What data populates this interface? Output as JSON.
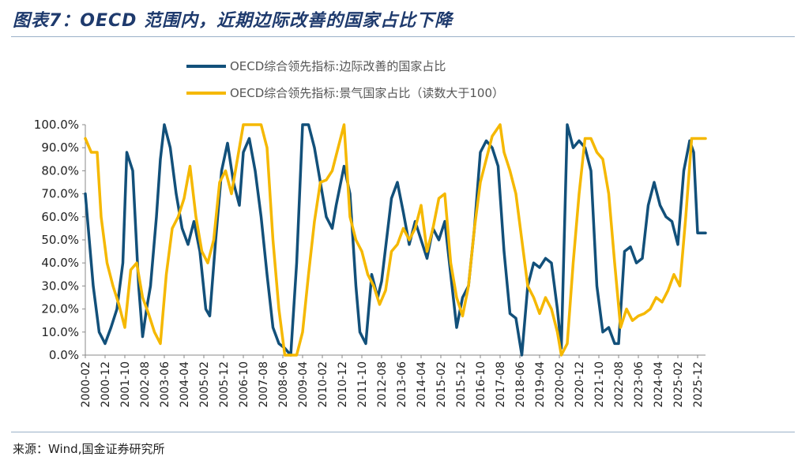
{
  "header": {
    "title": "图表7：OECD 范围内，近期边际改善的国家占比下降"
  },
  "footer": {
    "source": "来源：Wind,国金证券研究所"
  },
  "colors": {
    "series1": "#12507a",
    "series2": "#f5b800",
    "axis": "#888888",
    "rule": "#9ab0c8"
  },
  "chart_data": {
    "type": "line",
    "title": "",
    "xlabel": "",
    "ylabel": "",
    "ylim": [
      0,
      100
    ],
    "y_ticks": [
      "0.0%",
      "10.0%",
      "20.0%",
      "30.0%",
      "40.0%",
      "50.0%",
      "60.0%",
      "70.0%",
      "80.0%",
      "90.0%",
      "100.0%"
    ],
    "x_ticks": [
      "2000-02",
      "2000-12",
      "2001-10",
      "2002-08",
      "2003-06",
      "2004-04",
      "2005-02",
      "2005-12",
      "2006-10",
      "2007-08",
      "2008-06",
      "2009-04",
      "2010-02",
      "2010-12",
      "2011-10",
      "2012-08",
      "2013-06",
      "2014-04",
      "2015-02",
      "2015-12",
      "2016-10",
      "2017-08",
      "2018-06",
      "2019-04",
      "2020-02",
      "2020-12",
      "2021-10",
      "2022-08",
      "2023-06",
      "2024-04",
      "2025-02",
      "2025-12"
    ],
    "legend_position": "top-center",
    "grid": false,
    "series": [
      {
        "name": "OECD综合领先指标:边际改善的国家占比",
        "color": "#12507a",
        "points": [
          [
            "2000-02",
            70
          ],
          [
            "2000-06",
            30
          ],
          [
            "2000-09",
            10
          ],
          [
            "2000-12",
            5
          ],
          [
            "2001-03",
            12
          ],
          [
            "2001-06",
            20
          ],
          [
            "2001-09",
            40
          ],
          [
            "2001-11",
            88
          ],
          [
            "2002-02",
            80
          ],
          [
            "2002-05",
            30
          ],
          [
            "2002-07",
            8
          ],
          [
            "2002-09",
            20
          ],
          [
            "2002-11",
            30
          ],
          [
            "2003-02",
            60
          ],
          [
            "2003-04",
            85
          ],
          [
            "2003-06",
            100
          ],
          [
            "2003-09",
            90
          ],
          [
            "2003-12",
            70
          ],
          [
            "2004-03",
            55
          ],
          [
            "2004-06",
            48
          ],
          [
            "2004-09",
            58
          ],
          [
            "2004-12",
            45
          ],
          [
            "2005-03",
            20
          ],
          [
            "2005-05",
            17
          ],
          [
            "2005-08",
            50
          ],
          [
            "2005-11",
            80
          ],
          [
            "2006-02",
            92
          ],
          [
            "2006-05",
            75
          ],
          [
            "2006-08",
            65
          ],
          [
            "2006-10",
            88
          ],
          [
            "2007-01",
            94
          ],
          [
            "2007-04",
            80
          ],
          [
            "2007-07",
            60
          ],
          [
            "2007-10",
            35
          ],
          [
            "2008-01",
            12
          ],
          [
            "2008-04",
            5
          ],
          [
            "2008-07",
            3
          ],
          [
            "2008-10",
            0
          ],
          [
            "2009-01",
            40
          ],
          [
            "2009-04",
            100
          ],
          [
            "2009-07",
            100
          ],
          [
            "2009-10",
            90
          ],
          [
            "2010-01",
            75
          ],
          [
            "2010-04",
            60
          ],
          [
            "2010-07",
            55
          ],
          [
            "2010-09",
            65
          ],
          [
            "2011-01",
            82
          ],
          [
            "2011-04",
            70
          ],
          [
            "2011-07",
            30
          ],
          [
            "2011-09",
            10
          ],
          [
            "2011-12",
            5
          ],
          [
            "2012-03",
            35
          ],
          [
            "2012-06",
            25
          ],
          [
            "2012-08",
            32
          ],
          [
            "2013-01",
            68
          ],
          [
            "2013-04",
            75
          ],
          [
            "2013-07",
            62
          ],
          [
            "2013-10",
            48
          ],
          [
            "2014-01",
            58
          ],
          [
            "2014-04",
            50
          ],
          [
            "2014-07",
            42
          ],
          [
            "2014-10",
            55
          ],
          [
            "2015-01",
            50
          ],
          [
            "2015-04",
            58
          ],
          [
            "2015-07",
            35
          ],
          [
            "2015-10",
            12
          ],
          [
            "2016-01",
            25
          ],
          [
            "2016-04",
            30
          ],
          [
            "2016-07",
            55
          ],
          [
            "2016-10",
            88
          ],
          [
            "2017-01",
            93
          ],
          [
            "2017-04",
            90
          ],
          [
            "2017-07",
            82
          ],
          [
            "2017-10",
            45
          ],
          [
            "2018-01",
            18
          ],
          [
            "2018-04",
            16
          ],
          [
            "2018-07",
            0
          ],
          [
            "2018-10",
            30
          ],
          [
            "2019-01",
            40
          ],
          [
            "2019-04",
            38
          ],
          [
            "2019-07",
            42
          ],
          [
            "2019-10",
            40
          ],
          [
            "2020-01",
            20
          ],
          [
            "2020-03",
            3
          ],
          [
            "2020-06",
            100
          ],
          [
            "2020-09",
            90
          ],
          [
            "2020-12",
            93
          ],
          [
            "2021-03",
            90
          ],
          [
            "2021-06",
            80
          ],
          [
            "2021-09",
            30
          ],
          [
            "2021-12",
            10
          ],
          [
            "2022-03",
            12
          ],
          [
            "2022-06",
            5
          ],
          [
            "2022-08",
            5
          ],
          [
            "2022-11",
            45
          ],
          [
            "2023-02",
            47
          ],
          [
            "2023-05",
            40
          ],
          [
            "2023-08",
            42
          ],
          [
            "2023-11",
            65
          ],
          [
            "2024-02",
            75
          ],
          [
            "2024-05",
            65
          ],
          [
            "2024-08",
            60
          ],
          [
            "2024-11",
            58
          ],
          [
            "2025-02",
            48
          ],
          [
            "2025-05",
            80
          ],
          [
            "2025-08",
            93
          ],
          [
            "2025-10",
            88
          ],
          [
            "2025-12",
            53
          ],
          [
            "2026-04",
            53
          ]
        ]
      },
      {
        "name": "OECD综合领先指标:景气国家占比（读数大于100）",
        "color": "#f5b800",
        "points": [
          [
            "2000-02",
            94
          ],
          [
            "2000-05",
            88
          ],
          [
            "2000-08",
            88
          ],
          [
            "2000-10",
            60
          ],
          [
            "2001-01",
            40
          ],
          [
            "2001-04",
            30
          ],
          [
            "2001-07",
            22
          ],
          [
            "2001-10",
            12
          ],
          [
            "2002-01",
            37
          ],
          [
            "2002-04",
            40
          ],
          [
            "2002-07",
            25
          ],
          [
            "2002-10",
            18
          ],
          [
            "2003-01",
            10
          ],
          [
            "2003-04",
            5
          ],
          [
            "2003-07",
            35
          ],
          [
            "2003-10",
            55
          ],
          [
            "2004-01",
            60
          ],
          [
            "2004-04",
            68
          ],
          [
            "2004-07",
            82
          ],
          [
            "2004-10",
            60
          ],
          [
            "2005-01",
            45
          ],
          [
            "2005-04",
            40
          ],
          [
            "2005-07",
            50
          ],
          [
            "2005-10",
            75
          ],
          [
            "2006-01",
            80
          ],
          [
            "2006-04",
            70
          ],
          [
            "2006-07",
            85
          ],
          [
            "2006-10",
            100
          ],
          [
            "2007-01",
            100
          ],
          [
            "2007-04",
            100
          ],
          [
            "2007-07",
            100
          ],
          [
            "2007-10",
            90
          ],
          [
            "2008-01",
            50
          ],
          [
            "2008-04",
            20
          ],
          [
            "2008-07",
            0
          ],
          [
            "2008-10",
            0
          ],
          [
            "2009-01",
            0
          ],
          [
            "2009-04",
            10
          ],
          [
            "2009-07",
            35
          ],
          [
            "2009-10",
            58
          ],
          [
            "2010-01",
            75
          ],
          [
            "2010-04",
            76
          ],
          [
            "2010-07",
            80
          ],
          [
            "2010-10",
            90
          ],
          [
            "2011-01",
            100
          ],
          [
            "2011-04",
            60
          ],
          [
            "2011-07",
            50
          ],
          [
            "2011-10",
            45
          ],
          [
            "2012-01",
            35
          ],
          [
            "2012-04",
            30
          ],
          [
            "2012-07",
            22
          ],
          [
            "2012-10",
            28
          ],
          [
            "2013-01",
            45
          ],
          [
            "2013-04",
            48
          ],
          [
            "2013-07",
            55
          ],
          [
            "2013-10",
            50
          ],
          [
            "2014-01",
            55
          ],
          [
            "2014-04",
            65
          ],
          [
            "2014-07",
            45
          ],
          [
            "2014-10",
            55
          ],
          [
            "2015-01",
            68
          ],
          [
            "2015-04",
            70
          ],
          [
            "2015-07",
            40
          ],
          [
            "2015-10",
            25
          ],
          [
            "2016-01",
            17
          ],
          [
            "2016-04",
            30
          ],
          [
            "2016-07",
            55
          ],
          [
            "2016-10",
            75
          ],
          [
            "2017-01",
            85
          ],
          [
            "2017-04",
            95
          ],
          [
            "2017-08",
            100
          ],
          [
            "2017-10",
            88
          ],
          [
            "2018-01",
            80
          ],
          [
            "2018-04",
            70
          ],
          [
            "2018-07",
            50
          ],
          [
            "2018-10",
            30
          ],
          [
            "2019-01",
            25
          ],
          [
            "2019-04",
            18
          ],
          [
            "2019-07",
            25
          ],
          [
            "2019-10",
            20
          ],
          [
            "2020-01",
            10
          ],
          [
            "2020-03",
            0
          ],
          [
            "2020-06",
            5
          ],
          [
            "2020-09",
            40
          ],
          [
            "2020-12",
            70
          ],
          [
            "2021-03",
            94
          ],
          [
            "2021-06",
            94
          ],
          [
            "2021-09",
            88
          ],
          [
            "2021-12",
            85
          ],
          [
            "2022-03",
            70
          ],
          [
            "2022-06",
            40
          ],
          [
            "2022-09",
            12
          ],
          [
            "2022-12",
            20
          ],
          [
            "2023-03",
            15
          ],
          [
            "2023-06",
            17
          ],
          [
            "2023-09",
            18
          ],
          [
            "2023-12",
            20
          ],
          [
            "2024-03",
            25
          ],
          [
            "2024-06",
            23
          ],
          [
            "2024-09",
            28
          ],
          [
            "2024-12",
            35
          ],
          [
            "2025-03",
            30
          ],
          [
            "2025-06",
            60
          ],
          [
            "2025-09",
            94
          ],
          [
            "2025-12",
            94
          ],
          [
            "2026-04",
            94
          ]
        ]
      }
    ]
  }
}
